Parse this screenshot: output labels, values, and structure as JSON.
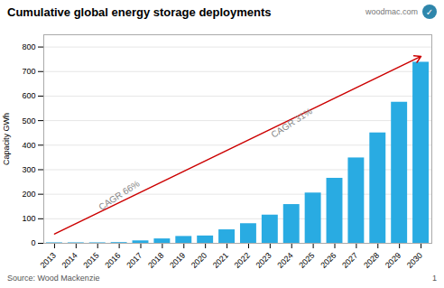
{
  "chart_data": {
    "type": "bar",
    "title": "Cumulative global energy storage deployments",
    "ylabel": "Capacity GWh",
    "categories": [
      "2013",
      "2014",
      "2015",
      "2016",
      "2017",
      "2018",
      "2019",
      "2020",
      "2021",
      "2022",
      "2023",
      "2024",
      "2025",
      "2026",
      "2027",
      "2028",
      "2029",
      "2030"
    ],
    "values": [
      2,
      2,
      2,
      3,
      10,
      18,
      28,
      30,
      55,
      80,
      115,
      158,
      205,
      265,
      348,
      450,
      575,
      738
    ],
    "color": "#29abe2",
    "ylim": [
      0,
      850
    ],
    "yticks": [
      0,
      100,
      200,
      300,
      400,
      500,
      600,
      700,
      800
    ],
    "grid": true,
    "lines": [
      {
        "x": [
          "2013",
          "2030"
        ],
        "y": [
          38,
          762
        ],
        "color": "#cc0000"
      }
    ],
    "annotations": [
      {
        "text": "CAGR 66%",
        "x": "2016",
        "y": 195
      },
      {
        "text": "CAGR 31%",
        "x": "2024",
        "y": 490
      }
    ],
    "source": "Source: Wood Mackenzie",
    "page_num": "1",
    "watermark": "woodmac.com",
    "logo": "✓"
  }
}
